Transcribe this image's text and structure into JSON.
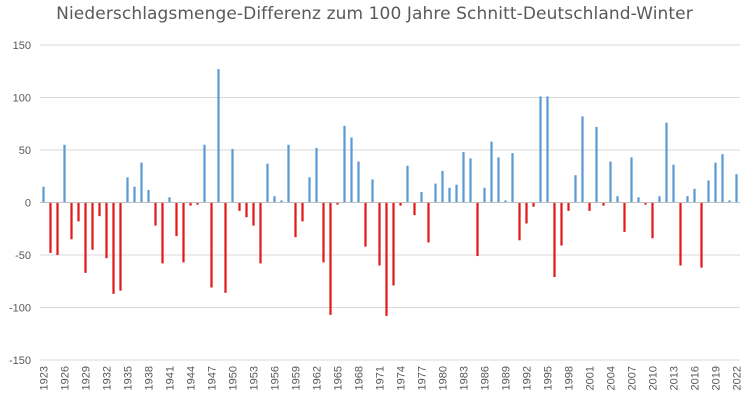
{
  "chart_data": {
    "type": "bar",
    "title": "Niederschlagsmenge-Differenz zum 100 Jahre Schnitt-Deutschland-Winter",
    "xlabel": "",
    "ylabel": "",
    "ylim": [
      -150,
      150
    ],
    "yticks": [
      -150,
      -100,
      -50,
      0,
      50,
      100,
      150
    ],
    "grid": true,
    "legend": "none",
    "colors": {
      "positive": "#5b9bd5",
      "negative": "#e31a1c",
      "grid": "#d9d9d9",
      "axis": "#bfbfbf",
      "text": "#595959"
    },
    "x_tick_labels": [
      "1923",
      "1926",
      "1929",
      "1932",
      "1935",
      "1938",
      "1941",
      "1944",
      "1947",
      "1950",
      "1953",
      "1956",
      "1959",
      "1962",
      "1965",
      "1968",
      "1971",
      "1974",
      "1977",
      "1980",
      "1983",
      "1986",
      "1989",
      "1992",
      "1995",
      "1998",
      "2001",
      "2004",
      "2007",
      "2010",
      "2013",
      "2016",
      "2019",
      "2022"
    ],
    "categories": [
      1923,
      1924,
      1925,
      1926,
      1927,
      1928,
      1929,
      1930,
      1931,
      1932,
      1933,
      1934,
      1935,
      1936,
      1937,
      1938,
      1939,
      1940,
      1941,
      1942,
      1943,
      1944,
      1945,
      1946,
      1947,
      1948,
      1949,
      1950,
      1951,
      1952,
      1953,
      1954,
      1955,
      1956,
      1957,
      1958,
      1959,
      1960,
      1961,
      1962,
      1963,
      1964,
      1965,
      1966,
      1967,
      1968,
      1969,
      1970,
      1971,
      1972,
      1973,
      1974,
      1975,
      1976,
      1977,
      1978,
      1979,
      1980,
      1981,
      1982,
      1983,
      1984,
      1985,
      1986,
      1987,
      1988,
      1989,
      1990,
      1991,
      1992,
      1993,
      1994,
      1995,
      1996,
      1997,
      1998,
      1999,
      2000,
      2001,
      2002,
      2003,
      2004,
      2005,
      2006,
      2007,
      2008,
      2009,
      2010,
      2011,
      2012,
      2013,
      2014,
      2015,
      2016,
      2017,
      2018,
      2019,
      2020,
      2021,
      2022
    ],
    "values": [
      15,
      -48,
      -50,
      55,
      -35,
      -18,
      -67,
      -45,
      -13,
      -53,
      -87,
      -84,
      24,
      15,
      38,
      12,
      -22,
      -58,
      5,
      -32,
      -57,
      -3,
      -2,
      55,
      -81,
      127,
      -86,
      51,
      -8,
      -14,
      -22,
      -58,
      37,
      6,
      2,
      55,
      -33,
      -18,
      24,
      52,
      -57,
      -107,
      -2,
      73,
      62,
      39,
      -42,
      22,
      -60,
      -108,
      -79,
      -3,
      35,
      -12,
      10,
      -38,
      18,
      30,
      14,
      17,
      48,
      42,
      -51,
      14,
      58,
      43,
      2,
      47,
      -36,
      -20,
      -4,
      101,
      101,
      -71,
      -41,
      -8,
      26,
      82,
      -8,
      72,
      -3,
      39,
      6,
      -28,
      43,
      5,
      -2,
      -34,
      6,
      76,
      36,
      -60,
      6,
      13,
      -62,
      21,
      38,
      46,
      2,
      27
    ]
  }
}
